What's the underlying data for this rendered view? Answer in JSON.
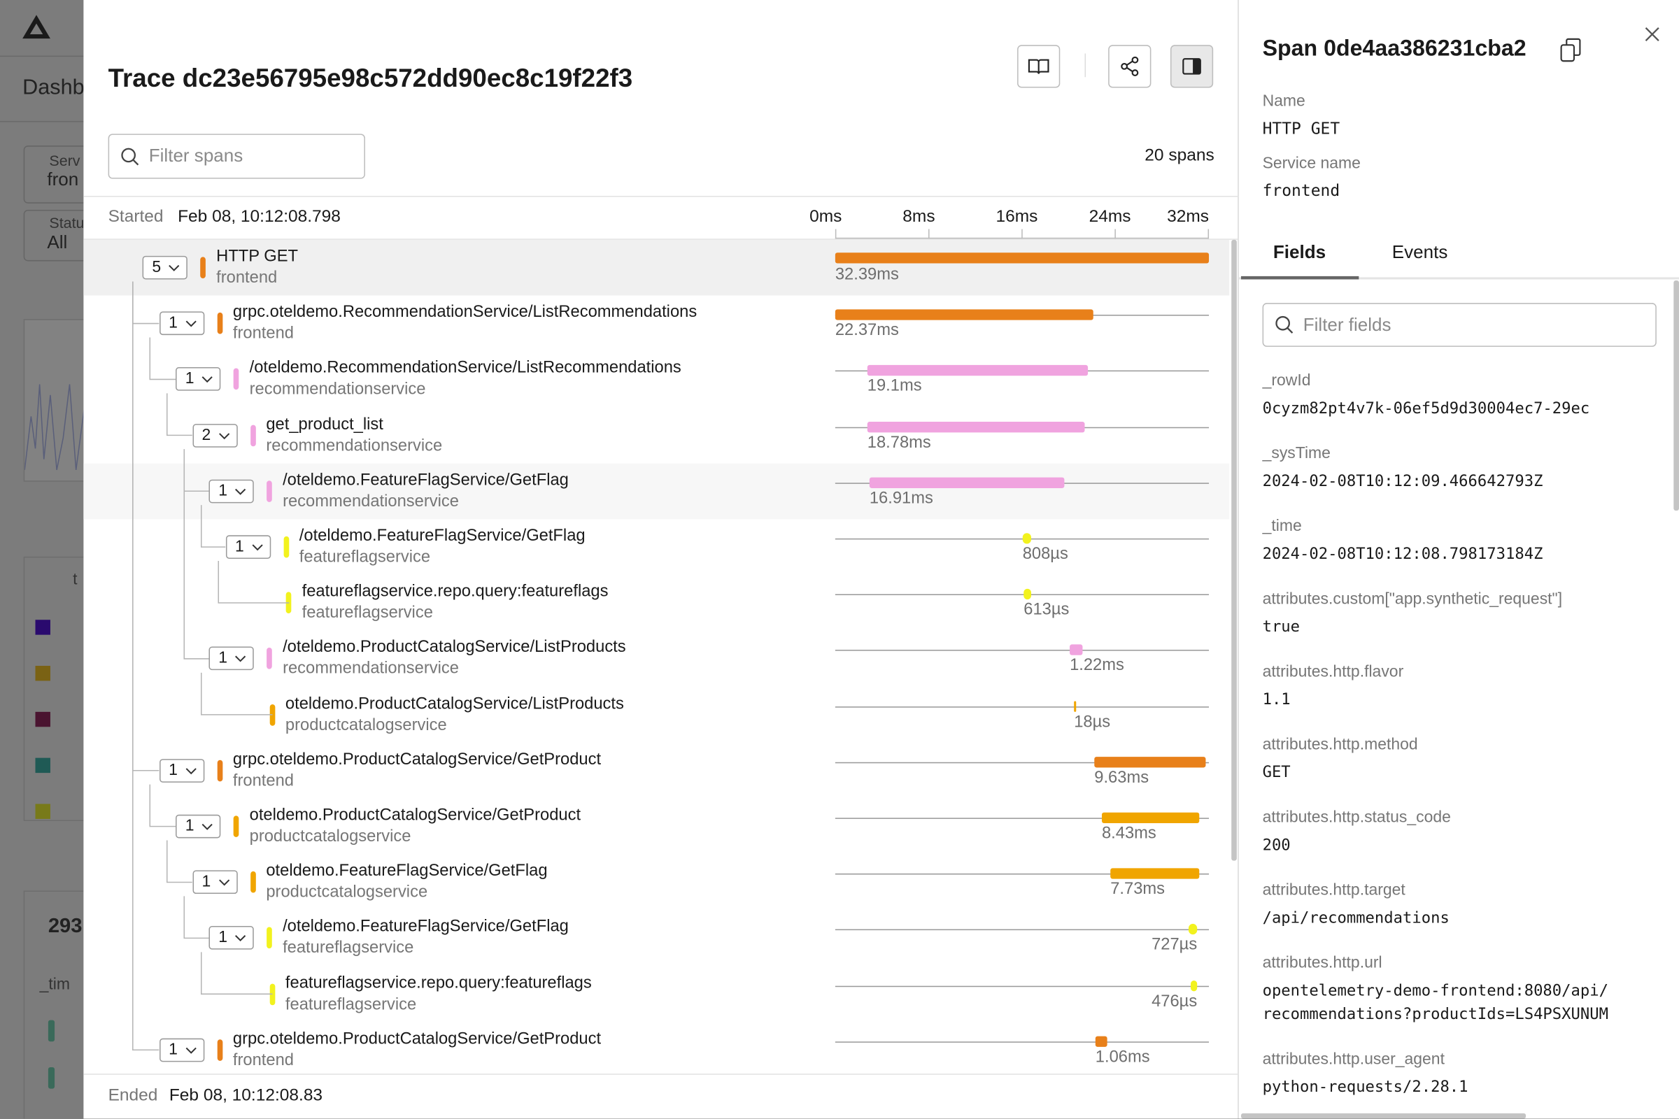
{
  "background": {
    "nav_label": "Dashb",
    "filter1_label": "Serv",
    "filter1_value": "fron",
    "filter2_label": "Statu",
    "filter2_value": "All",
    "column_label": "t",
    "count": "293",
    "time_column": "_tim"
  },
  "trace": {
    "title": "Trace dc23e56795e98c572dd90ec8c19f22f3",
    "filter_placeholder": "Filter spans",
    "span_count": "20 spans",
    "started_label": "Started",
    "started_value": "Feb 08, 10:12:08.798",
    "ticks": [
      "0ms",
      "8ms",
      "16ms",
      "24ms",
      "32ms"
    ],
    "spans": [
      {
        "toggle": "5",
        "name": "HTTP GET",
        "service": "frontend",
        "color": "#e8801a",
        "duration": "32.39ms"
      },
      {
        "toggle": "1",
        "name": "grpc.oteldemo.RecommendationService/ListRecommendations",
        "service": "frontend",
        "color": "#e8801a",
        "duration": "22.37ms"
      },
      {
        "toggle": "1",
        "name": "/oteldemo.RecommendationService/ListRecommendations",
        "service": "recommendationservice",
        "color": "#f0a3df",
        "duration": "19.1ms"
      },
      {
        "toggle": "2",
        "name": "get_product_list",
        "service": "recommendationservice",
        "color": "#f0a3df",
        "duration": "18.78ms"
      },
      {
        "toggle": "1",
        "name": "/oteldemo.FeatureFlagService/GetFlag",
        "service": "recommendationservice",
        "color": "#f0a3df",
        "duration": "16.91ms"
      },
      {
        "toggle": "1",
        "name": "/oteldemo.FeatureFlagService/GetFlag",
        "service": "featureflagservice",
        "color": "#f2f21e",
        "duration": "808µs"
      },
      {
        "toggle": null,
        "name": "featureflagservice.repo.query:featureflags",
        "service": "featureflagservice",
        "color": "#f2f21e",
        "duration": "613µs"
      },
      {
        "toggle": "1",
        "name": "/oteldemo.ProductCatalogService/ListProducts",
        "service": "recommendationservice",
        "color": "#f0a3df",
        "duration": "1.22ms"
      },
      {
        "toggle": null,
        "name": "oteldemo.ProductCatalogService/ListProducts",
        "service": "productcatalogservice",
        "color": "#f0a500",
        "duration": "18µs"
      },
      {
        "toggle": "1",
        "name": "grpc.oteldemo.ProductCatalogService/GetProduct",
        "service": "frontend",
        "color": "#e8801a",
        "duration": "9.63ms"
      },
      {
        "toggle": "1",
        "name": "oteldemo.ProductCatalogService/GetProduct",
        "service": "productcatalogservice",
        "color": "#f0a500",
        "duration": "8.43ms"
      },
      {
        "toggle": "1",
        "name": "oteldemo.FeatureFlagService/GetFlag",
        "service": "productcatalogservice",
        "color": "#f0a500",
        "duration": "7.73ms"
      },
      {
        "toggle": "1",
        "name": "/oteldemo.FeatureFlagService/GetFlag",
        "service": "featureflagservice",
        "color": "#f2f21e",
        "duration": "727µs"
      },
      {
        "toggle": null,
        "name": "featureflagservice.repo.query:featureflags",
        "service": "featureflagservice",
        "color": "#f2f21e",
        "duration": "476µs"
      },
      {
        "toggle": "1",
        "name": "grpc.oteldemo.ProductCatalogService/GetProduct",
        "service": "frontend",
        "color": "#e8801a",
        "duration": "1.06ms"
      }
    ],
    "ended_label": "Ended",
    "ended_value": "Feb 08, 10:12:08.83"
  },
  "span_panel": {
    "title": "Span 0de4aa386231cba2",
    "name_label": "Name",
    "name": "HTTP GET",
    "service_label": "Service name",
    "service": "frontend",
    "tabs": [
      "Fields",
      "Events"
    ],
    "filter_placeholder": "Filter fields",
    "fields": [
      {
        "key": "_rowId",
        "value": "0cyzm82pt4v7k-06ef5d9d30004ec7-29ec"
      },
      {
        "key": "_sysTime",
        "value": "2024-02-08T10:12:09.466642793Z"
      },
      {
        "key": "_time",
        "value": "2024-02-08T10:12:08.798173184Z"
      },
      {
        "key": "attributes.custom[\"app.synthetic_request\"]",
        "value": "true"
      },
      {
        "key": "attributes.http.flavor",
        "value": "1.1"
      },
      {
        "key": "attributes.http.method",
        "value": "GET"
      },
      {
        "key": "attributes.http.status_code",
        "value": "200"
      },
      {
        "key": "attributes.http.target",
        "value": "/api/recommendations"
      },
      {
        "key": "attributes.http.url",
        "value": "opentelemetry-demo-frontend:8080/api/recommendations?productIds=LS4PSXUNUM"
      },
      {
        "key": "attributes.http.user_agent",
        "value": "python-requests/2.28.1"
      }
    ]
  }
}
